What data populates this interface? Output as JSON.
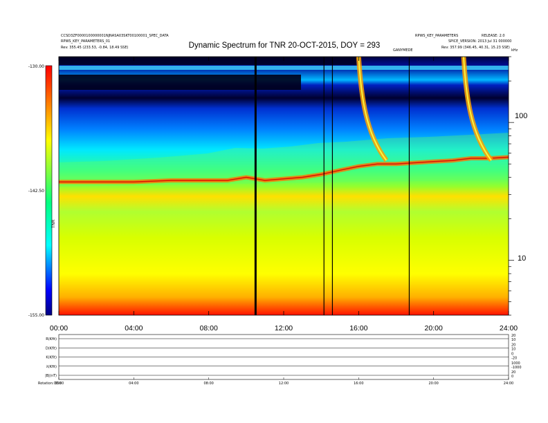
{
  "header": {
    "left_line1": "CCSD3ZF0000100000001NJNASA03SKT00100001_SPEC_DATA",
    "left_line2": "RPWS_KEY_PARAMETERS_01",
    "left_line3": "Rev: 355.45 (233.53, -0.84, 18.49 SSE)",
    "right_line1": "RPWS_KEY_PARAMETERS",
    "right_line1b": "RELEASE: 2.0",
    "right_line2": "SPICE_VERSION: 2013 Jul 31 000000",
    "right_line3": "Rev: 357.99 (346.45, 40.31, 15.23 SSE)",
    "mid_label": "GANYMEDE",
    "corner_label": "kHz"
  },
  "colors": {
    "lines": "#000000",
    "background": "#ffffff"
  },
  "chart_data": [
    {
      "type": "heatmap",
      "title": "Dynamic Spectrum for TNR 20-OCT-2015, DOY = 293",
      "x_ticks": [
        "00:00",
        "04:00",
        "08:00",
        "12:00",
        "16:00",
        "20:00",
        "24:00"
      ],
      "xlim_hours": [
        0,
        24
      ],
      "y_scale": "log",
      "y_ticks_right": [
        "100",
        "10"
      ],
      "ylim_khz": [
        4,
        300
      ],
      "colorbar": {
        "ticks": [
          "-130.00",
          "-142.50",
          "-155.00"
        ],
        "range": [
          -155,
          -130
        ],
        "label": "TNR",
        "colormap": [
          "#800000",
          "#ff0000",
          "#ffff00",
          "#00ff00",
          "#00ffff",
          "#0000ff",
          "#000080"
        ]
      },
      "features": {
        "dark_vertical_lines_hours": [
          10.5,
          14.15,
          14.6,
          18.7
        ],
        "auroral_bursts_hours": [
          16.0,
          21.6
        ],
        "plasma_line": {
          "hours": [
            0,
            2,
            4,
            6,
            8,
            9,
            10,
            11,
            12,
            13,
            14,
            15,
            16,
            17,
            18,
            19,
            20,
            21,
            22,
            23,
            24
          ],
          "khz": [
            37,
            37,
            37,
            38,
            38,
            38,
            40,
            38,
            39,
            40,
            42,
            45,
            48,
            50,
            50,
            51,
            52,
            53,
            55,
            55,
            56
          ]
        }
      }
    },
    {
      "type": "line",
      "title": "",
      "x_ticks": [
        "00:00",
        "04:00",
        "08:00",
        "12:00",
        "16:00",
        "20:00",
        "24:00"
      ],
      "xlim_hours": [
        0,
        24
      ],
      "series": [
        {
          "name": "R(Kfit)",
          "right_ticks": [
            "20",
            "10"
          ]
        },
        {
          "name": "D(Kfit)",
          "right_ticks": [
            "20",
            "10"
          ]
        },
        {
          "name": "K(Kfit)",
          "right_ticks": [
            "0",
            "-20"
          ]
        },
        {
          "name": "λ(Kfit)",
          "right_ticks": [
            "1000",
            "-1000"
          ]
        },
        {
          "name": "|B|(nT)",
          "right_ticks": [
            "20",
            "0"
          ]
        }
      ],
      "footer_label": "Rotation: 356"
    }
  ]
}
